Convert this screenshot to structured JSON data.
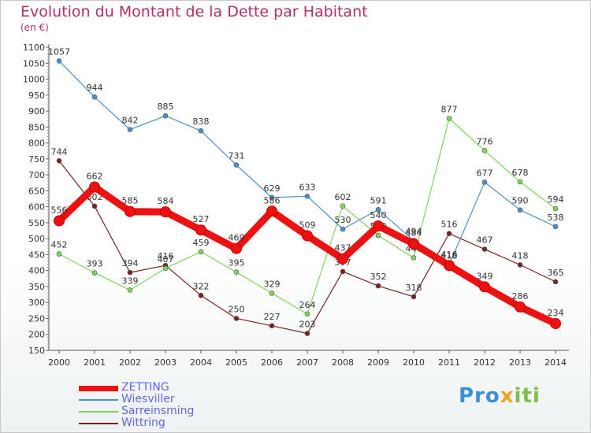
{
  "title": "Evolution du Montant de la Dette par Habitant",
  "subtitle": "(en €)",
  "logo": {
    "p1": "Pro",
    "p2": "x",
    "p3": "iti"
  },
  "chart_data": {
    "type": "line",
    "title": "Evolution du Montant de la Dette par Habitant",
    "ylabel": "(en €)",
    "xlabel": "",
    "ylim": [
      150,
      1100
    ],
    "y_ticks": [
      150,
      200,
      250,
      300,
      350,
      400,
      450,
      500,
      550,
      600,
      650,
      700,
      750,
      800,
      850,
      900,
      950,
      1000,
      1050,
      1100
    ],
    "x": [
      2000,
      2001,
      2002,
      2003,
      2004,
      2005,
      2006,
      2007,
      2008,
      2009,
      2010,
      2011,
      2012,
      2013,
      2014
    ],
    "grid": false,
    "legend_position": "bottom-left",
    "series": [
      {
        "name": "Wittring",
        "color": "#7a2222",
        "values": [
          744,
          602,
          394,
          416,
          322,
          250,
          227,
          203,
          397,
          352,
          318,
          516,
          467,
          418,
          365
        ]
      },
      {
        "name": "Sarreinsming",
        "color": "#7dd65a",
        "values": [
          452,
          393,
          339,
          407,
          459,
          395,
          329,
          264,
          602,
          510,
          440,
          877,
          776,
          678,
          594
        ]
      },
      {
        "name": "Wiesviller",
        "color": "#4a90c8",
        "values": [
          1057,
          944,
          842,
          885,
          838,
          731,
          629,
          633,
          530,
          591,
          494,
          418,
          677,
          590,
          538
        ]
      },
      {
        "name": "ZETTING",
        "color": "#ee1111",
        "values": [
          556,
          662,
          585,
          584,
          527,
          469,
          586,
          509,
          437,
          540,
          484,
          416,
          349,
          286,
          234
        ]
      }
    ],
    "legend_order": [
      "ZETTING",
      "Wiesviller",
      "Sarreinsming",
      "Wittring"
    ]
  }
}
